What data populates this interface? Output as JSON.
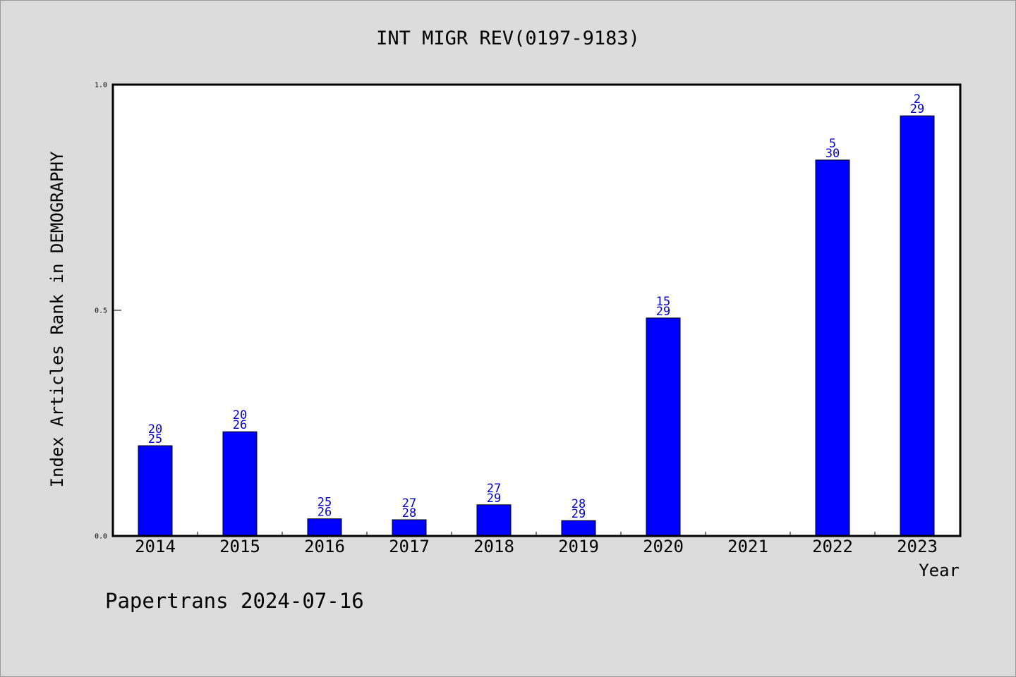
{
  "chart_data": {
    "type": "bar",
    "title": "INT MIGR REV(0197-9183)",
    "xlabel": "Year",
    "ylabel": "Index Articles Rank in DEMOGRAPHY",
    "ylim": [
      0.0,
      1.0
    ],
    "yticks": [
      {
        "value": 0.0,
        "label": "0.0"
      },
      {
        "value": 0.5,
        "label": "0.5"
      },
      {
        "value": 1.0,
        "label": "1.0"
      }
    ],
    "categories": [
      "2014",
      "2015",
      "2016",
      "2017",
      "2018",
      "2019",
      "2020",
      "2021",
      "2022",
      "2023"
    ],
    "values": [
      0.2,
      0.231,
      0.038,
      0.036,
      0.069,
      0.034,
      0.483,
      null,
      0.833,
      0.931
    ],
    "labels": [
      [
        "20",
        "25"
      ],
      [
        "20",
        "26"
      ],
      [
        "25",
        "26"
      ],
      [
        "27",
        "28"
      ],
      [
        "27",
        "29"
      ],
      [
        "28",
        "29"
      ],
      [
        "15",
        "29"
      ],
      null,
      [
        "5",
        "30"
      ],
      [
        "2",
        "29"
      ]
    ],
    "grid": false,
    "bar_color": "#0000ff",
    "label_color": "#0000cc"
  },
  "footer": "Papertrans 2024-07-16"
}
